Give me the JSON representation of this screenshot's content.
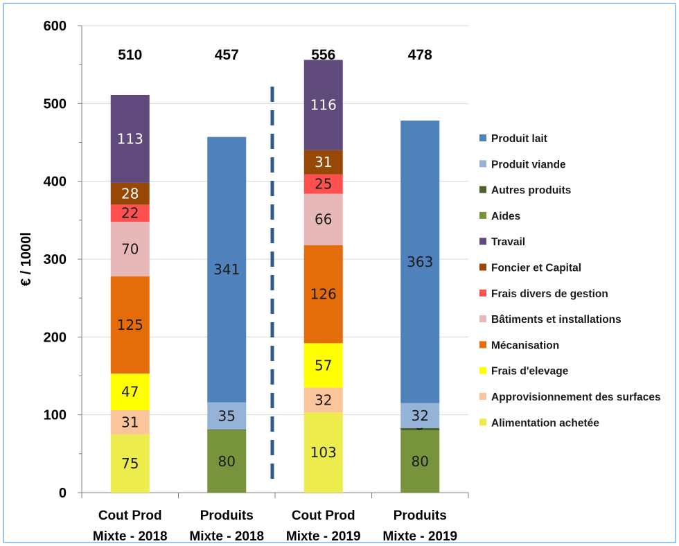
{
  "chart_data": {
    "type": "bar",
    "stacked": true,
    "ylabel": "€ / 1000l",
    "ylim": [
      0,
      600
    ],
    "yticks": [
      0,
      100,
      200,
      300,
      400,
      500,
      600
    ],
    "categories": [
      "Cout Prod Mixte - 2018",
      "Produits Mixte - 2018",
      "Cout Prod Mixte - 2019",
      "Produits Mixte - 2019"
    ],
    "category_lines": [
      [
        "Cout Prod",
        "Mixte - 2018"
      ],
      [
        "Produits",
        "Mixte - 2018"
      ],
      [
        "Cout Prod",
        "Mixte - 2019"
      ],
      [
        "Produits",
        "Mixte - 2019"
      ]
    ],
    "totals": [
      "510",
      "457",
      "556",
      "478"
    ],
    "grid": "horizontal",
    "legend_position": "right",
    "separator": "dashed line between 2018 and 2019",
    "series": [
      {
        "name": "Alimentation achetée",
        "color": "#ecec4c",
        "values": [
          75,
          0,
          103,
          0
        ]
      },
      {
        "name": "Approvisionnement des surfaces",
        "color": "#fac59a",
        "values": [
          31,
          0,
          32,
          0
        ]
      },
      {
        "name": "Frais d'elevage",
        "color": "#ffff00",
        "values": [
          47,
          0,
          57,
          0
        ]
      },
      {
        "name": "Mécanisation",
        "color": "#e46c0a",
        "values": [
          125,
          0,
          126,
          0
        ]
      },
      {
        "name": "Bâtiments et installations",
        "color": "#e6b9b8",
        "values": [
          70,
          0,
          66,
          0
        ]
      },
      {
        "name": "Frais divers de gestion",
        "color": "#ff5050",
        "values": [
          22,
          0,
          25,
          0
        ]
      },
      {
        "name": "Foncier et Capital",
        "color": "#984806",
        "values": [
          28,
          0,
          31,
          0
        ]
      },
      {
        "name": "Travail",
        "color": "#604a7b",
        "values": [
          113,
          0,
          116,
          0
        ]
      },
      {
        "name": "Aides",
        "color": "#77933c",
        "values": [
          0,
          80,
          0,
          80
        ]
      },
      {
        "name": "Autres produits",
        "color": "#4f6228",
        "values": [
          0,
          1,
          0,
          3
        ]
      },
      {
        "name": "Produit viande",
        "color": "#95b3d7",
        "values": [
          0,
          35,
          0,
          32
        ]
      },
      {
        "name": "Produit lait",
        "color": "#4f81bd",
        "values": [
          0,
          341,
          0,
          363
        ]
      }
    ],
    "legend_order": [
      "Produit lait",
      "Produit viande",
      "Autres produits",
      "Aides",
      "Travail",
      "Foncier et Capital",
      "Frais divers de gestion",
      "Bâtiments et installations",
      "Mécanisation",
      "Frais d'elevage",
      "Approvisionnement des surfaces",
      "Alimentation achetée"
    ]
  }
}
